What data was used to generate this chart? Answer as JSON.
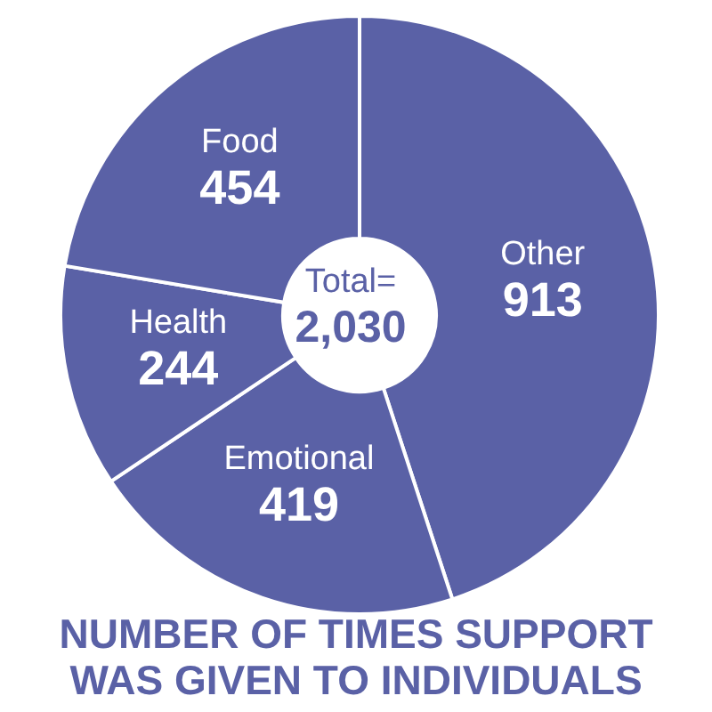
{
  "chart_data": {
    "type": "donut",
    "title": "NUMBER OF TIMES SUPPORT WAS GIVEN TO INDIVIDUALS",
    "categories": [
      "Other",
      "Emotional",
      "Health",
      "Food"
    ],
    "values": [
      913,
      419,
      244,
      454
    ],
    "colors": [
      "#5a61a6",
      "#5a61a6",
      "#5a61a6",
      "#5a61a6"
    ],
    "data_labels": true,
    "annotations": [
      "Total=",
      "2,030"
    ]
  }
}
